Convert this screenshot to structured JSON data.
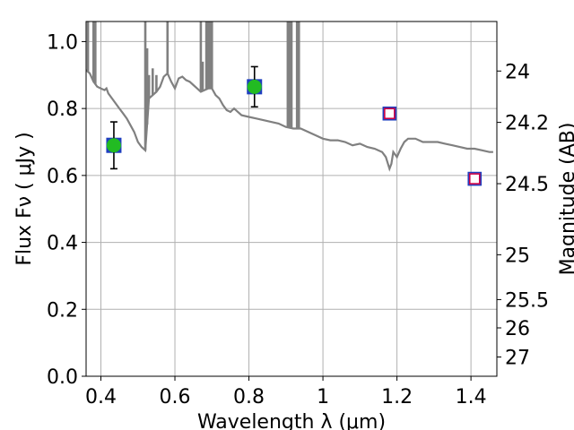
{
  "chart_data": {
    "type": "scatter",
    "title": "",
    "xlabel": "Wavelength  λ (μm)",
    "ylabel_left": "Flux  Fν  ( μJy )",
    "ylabel_right": "Magnitude (AB)",
    "xlim": [
      0.36,
      1.47
    ],
    "ylim": [
      0.0,
      1.06
    ],
    "grid": true,
    "x_ticks": [
      0.4,
      0.6,
      0.8,
      1.0,
      1.2,
      1.4
    ],
    "x_tick_labels": [
      "0.4",
      "0.6",
      "0.8",
      "1",
      "1.2",
      "1.4"
    ],
    "y_ticks": [
      0.0,
      0.2,
      0.4,
      0.6,
      0.8,
      1.0
    ],
    "y_tick_labels": [
      "0.0",
      "0.2",
      "0.4",
      "0.6",
      "0.8",
      "1.0"
    ],
    "right_ticks_mag": [
      24,
      24.2,
      24.5,
      25,
      25.5,
      26,
      27
    ],
    "right_tick_labels": [
      "24",
      "24.2",
      "24.5",
      "25",
      "25.5",
      "26",
      "27"
    ],
    "series": [
      {
        "kind": "model_sed",
        "color": "#808080",
        "x": [
          0.36,
          0.37,
          0.38,
          0.39,
          0.4,
          0.41,
          0.415,
          0.42,
          0.43,
          0.44,
          0.45,
          0.46,
          0.47,
          0.48,
          0.49,
          0.5,
          0.51,
          0.52,
          0.53,
          0.54,
          0.55,
          0.56,
          0.57,
          0.58,
          0.59,
          0.6,
          0.61,
          0.62,
          0.63,
          0.64,
          0.65,
          0.66,
          0.67,
          0.68,
          0.69,
          0.7,
          0.71,
          0.72,
          0.73,
          0.74,
          0.75,
          0.76,
          0.77,
          0.78,
          0.8,
          0.82,
          0.84,
          0.86,
          0.88,
          0.9,
          0.92,
          0.94,
          0.96,
          0.98,
          1.0,
          1.02,
          1.04,
          1.06,
          1.08,
          1.1,
          1.12,
          1.14,
          1.16,
          1.17,
          1.18,
          1.185,
          1.19,
          1.2,
          1.21,
          1.22,
          1.23,
          1.25,
          1.27,
          1.29,
          1.31,
          1.33,
          1.35,
          1.37,
          1.39,
          1.41,
          1.43,
          1.45,
          1.46
        ],
        "y": [
          0.915,
          0.905,
          0.88,
          0.865,
          0.86,
          0.855,
          0.86,
          0.845,
          0.83,
          0.815,
          0.8,
          0.785,
          0.77,
          0.75,
          0.73,
          0.7,
          0.685,
          0.675,
          0.83,
          0.84,
          0.85,
          0.865,
          0.895,
          0.905,
          0.88,
          0.86,
          0.89,
          0.895,
          0.885,
          0.88,
          0.87,
          0.86,
          0.85,
          0.855,
          0.86,
          0.86,
          0.84,
          0.83,
          0.81,
          0.795,
          0.79,
          0.8,
          0.79,
          0.78,
          0.775,
          0.77,
          0.765,
          0.76,
          0.755,
          0.745,
          0.74,
          0.74,
          0.73,
          0.72,
          0.71,
          0.705,
          0.705,
          0.7,
          0.69,
          0.695,
          0.685,
          0.68,
          0.67,
          0.655,
          0.62,
          0.635,
          0.67,
          0.655,
          0.68,
          0.7,
          0.71,
          0.71,
          0.7,
          0.7,
          0.7,
          0.695,
          0.69,
          0.685,
          0.68,
          0.68,
          0.675,
          0.67,
          0.67
        ]
      },
      {
        "kind": "model_spikes",
        "color": "#808080",
        "x": [
          0.365,
          0.38,
          0.385,
          0.52,
          0.525,
          0.53,
          0.54,
          0.55,
          0.58,
          0.67,
          0.675,
          0.685,
          0.69,
          0.695,
          0.7,
          0.905,
          0.91,
          0.915,
          0.93,
          0.935
        ],
        "y": [
          1.06,
          1.06,
          1.06,
          1.06,
          0.98,
          0.9,
          0.92,
          0.9,
          1.06,
          1.06,
          0.94,
          1.06,
          1.06,
          1.06,
          1.06,
          1.06,
          1.06,
          1.06,
          1.06,
          1.06
        ]
      },
      {
        "kind": "observed_model_flux",
        "marker": "square",
        "edge_color": "#1f3fbf",
        "x": [
          0.435,
          0.815
        ],
        "y": [
          0.69,
          0.865
        ]
      },
      {
        "kind": "observed_detections",
        "marker": "circle",
        "color": "#22bb22",
        "x": [
          0.435,
          0.815
        ],
        "y": [
          0.69,
          0.865
        ],
        "yerr": [
          0.07,
          0.06
        ]
      },
      {
        "kind": "upper_limits",
        "marker": "square_open",
        "outer_color": "#1f3fbf",
        "inner_color": "#cc0044",
        "x": [
          1.18,
          1.41
        ],
        "y": [
          0.785,
          0.59
        ]
      }
    ]
  }
}
